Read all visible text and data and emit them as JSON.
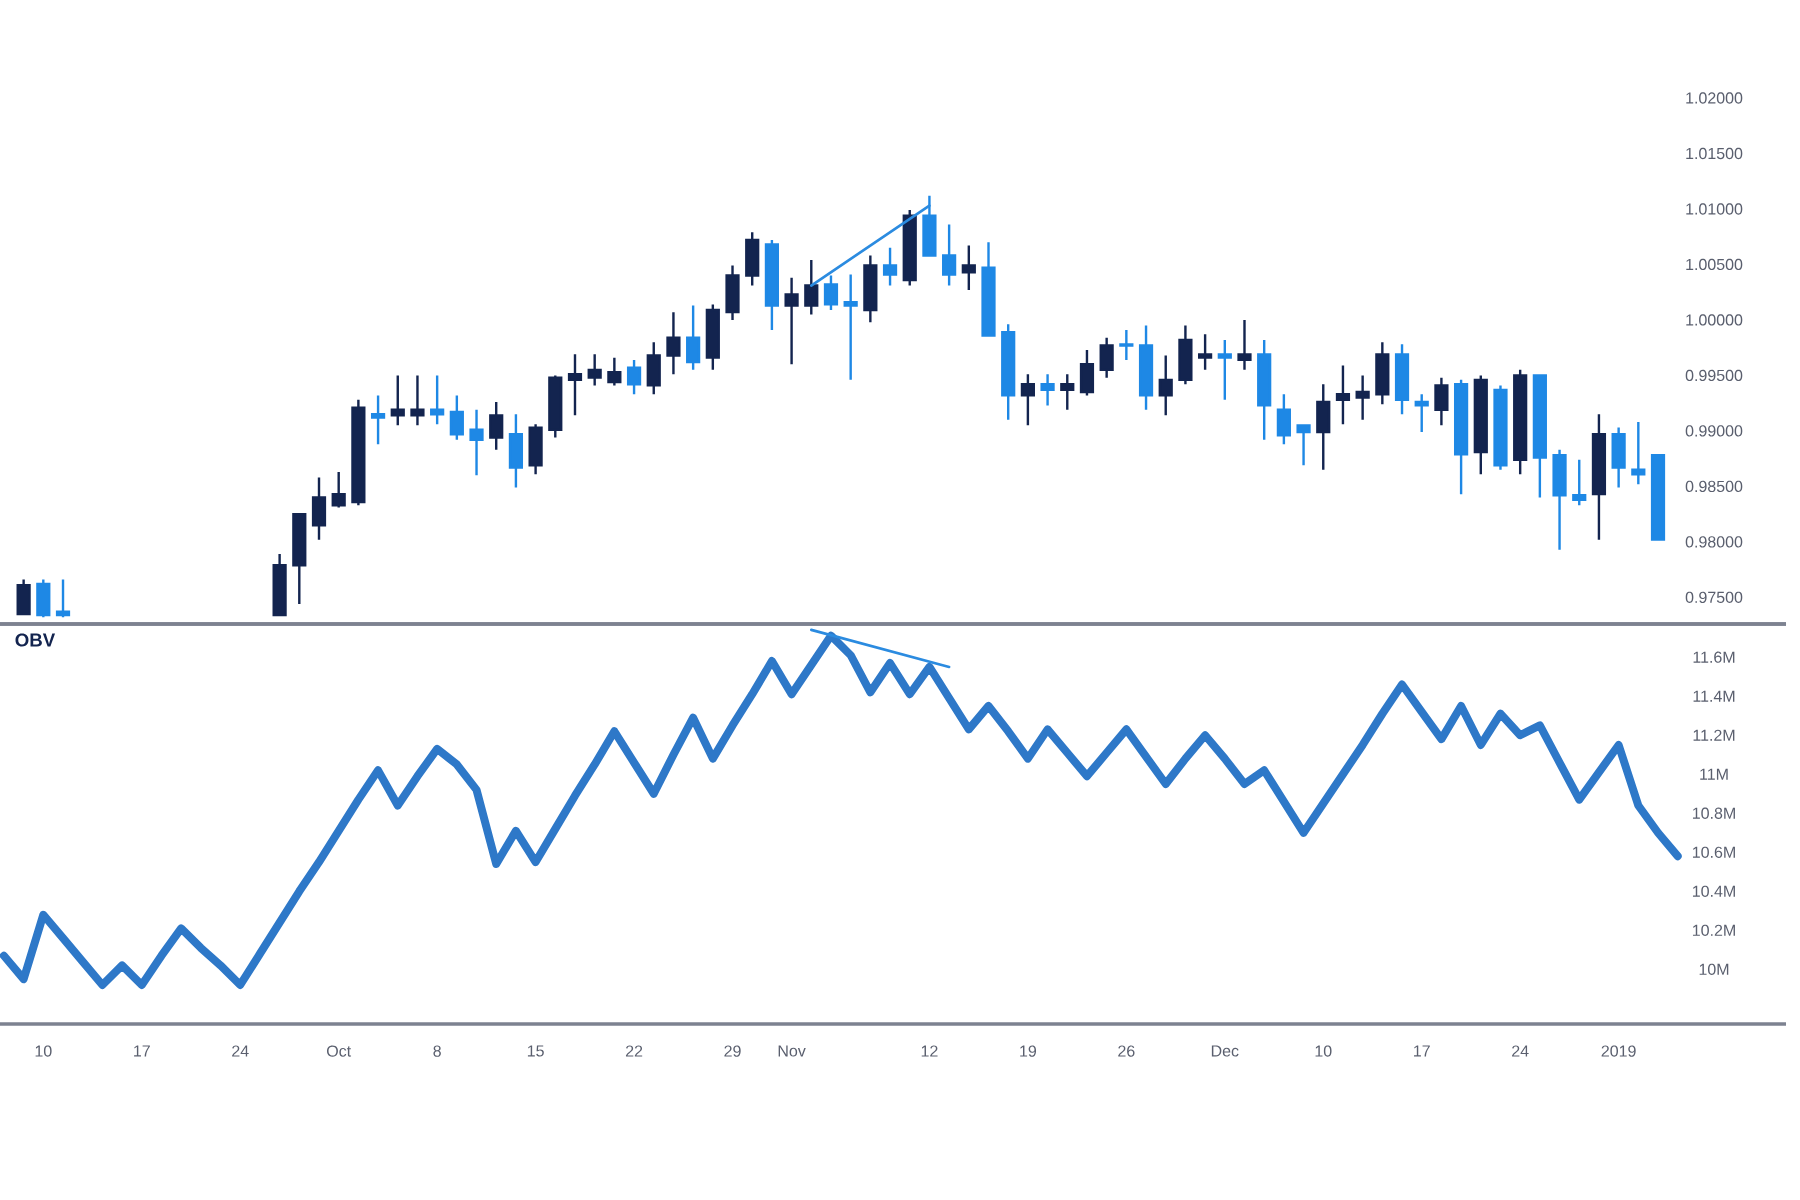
{
  "chart_data": [
    {
      "type": "candlestick",
      "series": [
        {
          "type": "candlestick",
          "ohlc": [
            null,
            [
              0.9735,
              0.9766,
              0.9734,
              0.9761
            ],
            [
              0.9762,
              0.9766,
              0.9732,
              0.9734
            ],
            [
              0.9737,
              0.9766,
              0.9732,
              0.9734
            ],
            null,
            null,
            null,
            null,
            null,
            null,
            null,
            null,
            null,
            null,
            [
              0.9734,
              0.9789,
              0.9734,
              0.9779
            ],
            [
              0.9779,
              0.9825,
              0.9744,
              0.9825
            ],
            [
              0.9815,
              0.9858,
              0.9802,
              0.984
            ],
            [
              0.9833,
              0.9863,
              0.9831,
              0.9843
            ],
            [
              0.9836,
              0.9928,
              0.9833,
              0.9921
            ],
            [
              0.9915,
              0.9932,
              0.9888,
              0.9912
            ],
            [
              0.9914,
              0.995,
              0.9905,
              0.9919
            ],
            [
              0.9914,
              0.995,
              0.9905,
              0.9919
            ],
            [
              0.9919,
              0.995,
              0.9906,
              0.9915
            ],
            [
              0.9917,
              0.9932,
              0.9892,
              0.9897
            ],
            [
              0.9901,
              0.9919,
              0.986,
              0.9892
            ],
            [
              0.9894,
              0.9926,
              0.9883,
              0.9914
            ],
            [
              0.9897,
              0.9915,
              0.9849,
              0.9867
            ],
            [
              0.9869,
              0.9906,
              0.9861,
              0.9903
            ],
            [
              0.9901,
              0.995,
              0.9894,
              0.9948
            ],
            [
              0.9946,
              0.9969,
              0.9914,
              0.9951
            ],
            [
              0.9948,
              0.9969,
              0.9941,
              0.9955
            ],
            [
              0.9944,
              0.9966,
              0.9941,
              0.9953
            ],
            [
              0.9957,
              0.9964,
              0.9933,
              0.9942
            ],
            [
              0.9941,
              0.998,
              0.9933,
              0.9968
            ],
            [
              0.9968,
              1.0007,
              0.9951,
              0.9984
            ],
            [
              0.9984,
              1.0013,
              0.9955,
              0.9962
            ],
            [
              0.9966,
              1.0014,
              0.9955,
              1.0009
            ],
            [
              1.0007,
              1.0049,
              1.0,
              1.004
            ],
            [
              1.004,
              1.0079,
              1.0031,
              1.0072
            ],
            [
              1.0068,
              1.0072,
              0.9991,
              1.0013
            ],
            [
              1.0013,
              1.0038,
              0.996,
              1.0023
            ],
            [
              1.0013,
              1.0054,
              1.0005,
              1.0031
            ],
            [
              1.0032,
              1.004,
              1.0009,
              1.0014
            ],
            [
              1.0016,
              1.0041,
              0.9946,
              1.0013
            ],
            [
              1.0009,
              1.0058,
              0.9998,
              1.0049
            ],
            [
              1.0049,
              1.0065,
              1.0031,
              1.0041
            ],
            [
              1.0036,
              1.0099,
              1.0031,
              1.0094
            ],
            [
              1.0094,
              1.0112,
              1.0058,
              1.0058
            ],
            [
              1.0058,
              1.0086,
              1.0031,
              1.0041
            ],
            [
              1.0043,
              1.0067,
              1.0027,
              1.0049
            ],
            [
              1.0047,
              1.007,
              0.9986,
              0.9986
            ],
            [
              0.9989,
              0.9996,
              0.991,
              0.9932
            ],
            [
              0.9932,
              0.9951,
              0.9905,
              0.9942
            ],
            [
              0.9942,
              0.9951,
              0.9923,
              0.9937
            ],
            [
              0.9937,
              0.9951,
              0.9919,
              0.9942
            ],
            [
              0.9935,
              0.9973,
              0.9932,
              0.996
            ],
            [
              0.9955,
              0.9984,
              0.9948,
              0.9977
            ],
            [
              0.9978,
              0.9991,
              0.9964,
              0.9977
            ],
            [
              0.9977,
              0.9995,
              0.9919,
              0.9932
            ],
            [
              0.9932,
              0.9968,
              0.9914,
              0.9946
            ],
            [
              0.9946,
              0.9995,
              0.9942,
              0.9982
            ],
            [
              0.9966,
              0.9987,
              0.9955,
              0.9969
            ],
            [
              0.9969,
              0.9982,
              0.9928,
              0.9966
            ],
            [
              0.9964,
              1.0,
              0.9955,
              0.9969
            ],
            [
              0.9969,
              0.9982,
              0.9892,
              0.9923
            ],
            [
              0.9919,
              0.9933,
              0.9888,
              0.9896
            ],
            [
              0.9905,
              0.9906,
              0.9869,
              0.9899
            ],
            [
              0.9899,
              0.9942,
              0.9865,
              0.9926
            ],
            [
              0.9928,
              0.9959,
              0.9906,
              0.9933
            ],
            [
              0.993,
              0.995,
              0.991,
              0.9935
            ],
            [
              0.9933,
              0.998,
              0.9924,
              0.9969
            ],
            [
              0.9969,
              0.9978,
              0.9915,
              0.9928
            ],
            [
              0.9926,
              0.9933,
              0.9899,
              0.9923
            ],
            [
              0.9919,
              0.9948,
              0.9905,
              0.9941
            ],
            [
              0.9942,
              0.9946,
              0.9843,
              0.9879
            ],
            [
              0.9881,
              0.995,
              0.9861,
              0.9946
            ],
            [
              0.9937,
              0.9941,
              0.9865,
              0.9869
            ],
            [
              0.9874,
              0.9955,
              0.9861,
              0.995
            ],
            [
              0.995,
              0.9951,
              0.984,
              0.9876
            ],
            [
              0.9878,
              0.9883,
              0.9793,
              0.9842
            ],
            [
              0.9842,
              0.9874,
              0.9833,
              0.9838
            ],
            [
              0.9843,
              0.9915,
              0.9802,
              0.9897
            ],
            [
              0.9897,
              0.9903,
              0.9849,
              0.9867
            ],
            [
              0.9865,
              0.9908,
              0.9852,
              0.9861
            ],
            [
              0.9878,
              0.9878,
              0.9802,
              0.9802
            ],
            null
          ],
          "colors": [
            null,
            "#13244f",
            "#1e88e5",
            "#1e88e5",
            null,
            null,
            null,
            null,
            null,
            null,
            null,
            null,
            null,
            null,
            "#13244f",
            "#13244f",
            "#13244f",
            "#13244f",
            "#13244f",
            "#1e88e5",
            "#13244f",
            "#13244f",
            "#1e88e5",
            "#1e88e5",
            "#1e88e5",
            "#13244f",
            "#1e88e5",
            "#13244f",
            "#13244f",
            "#13244f",
            "#13244f",
            "#13244f",
            "#1e88e5",
            "#13244f",
            "#13244f",
            "#1e88e5",
            "#13244f",
            "#13244f",
            "#13244f",
            "#1e88e5",
            "#13244f",
            "#13244f",
            "#1e88e5",
            "#1e88e5",
            "#13244f",
            "#1e88e5",
            "#13244f",
            "#1e88e5",
            "#1e88e5",
            "#13244f",
            "#1e88e5",
            "#1e88e5",
            "#13244f",
            "#1e88e5",
            "#13244f",
            "#13244f",
            "#13244f",
            "#1e88e5",
            "#1e88e5",
            "#13244f",
            "#13244f",
            "#13244f",
            "#1e88e5",
            "#13244f",
            "#1e88e5",
            "#1e88e5",
            "#1e88e5",
            "#13244f",
            "#13244f",
            "#13244f",
            "#13244f",
            "#1e88e5",
            "#1e88e5",
            "#13244f",
            "#1e88e5",
            "#13244f",
            "#1e88e5",
            "#13244f",
            "#1e88e5",
            "#1e88e5",
            "#1e88e5",
            "#13244f",
            "#1e88e5",
            "#1e88e5",
            "#1e88e5",
            null
          ]
        },
        {
          "type": "line",
          "color": "#2b8be0",
          "values": [
            null,
            null,
            null,
            null,
            null,
            null,
            null,
            null,
            null,
            null,
            null,
            null,
            null,
            null,
            null,
            null,
            null,
            null,
            null,
            null,
            null,
            null,
            null,
            null,
            null,
            null,
            null,
            null,
            null,
            null,
            null,
            null,
            null,
            null,
            null,
            null,
            null,
            null,
            null,
            null,
            null,
            1.0031,
            null,
            null,
            null,
            null,
            null,
            1.0103,
            null,
            null,
            null,
            null,
            null,
            null,
            null,
            null,
            null,
            null,
            null,
            null,
            null,
            null,
            null,
            null,
            null,
            null,
            null,
            null,
            null,
            null,
            null,
            null,
            null,
            null,
            null,
            null,
            null,
            null,
            null,
            null,
            null,
            null,
            null,
            null,
            null,
            null
          ]
        }
      ],
      "ylim": [
        0.9726,
        1.02
      ],
      "yticks": [
        {
          "value": 0.975,
          "label": "0.97500"
        },
        {
          "value": 0.98,
          "label": "0.98000"
        },
        {
          "value": 0.985,
          "label": "0.98500"
        },
        {
          "value": 0.99,
          "label": "0.99000"
        },
        {
          "value": 0.995,
          "label": "0.99500"
        },
        {
          "value": 1.0,
          "label": "1.00000"
        },
        {
          "value": 1.005,
          "label": "1.00500"
        },
        {
          "value": 1.01,
          "label": "1.01000"
        },
        {
          "value": 1.015,
          "label": "1.01500"
        },
        {
          "value": 1.02,
          "label": "1.02000"
        }
      ],
      "tick_labels": "y"
    },
    {
      "type": "line",
      "title": "OBV",
      "categories": [
        null,
        null,
        "10",
        null,
        null,
        null,
        null,
        "17",
        null,
        null,
        null,
        null,
        "24",
        null,
        null,
        null,
        null,
        "Oct",
        null,
        null,
        null,
        null,
        "8",
        null,
        null,
        null,
        null,
        "15",
        null,
        null,
        null,
        null,
        "22",
        null,
        null,
        null,
        null,
        "29",
        null,
        null,
        "Nov",
        null,
        null,
        null,
        null,
        null,
        null,
        "12",
        null,
        null,
        null,
        null,
        "19",
        null,
        null,
        null,
        null,
        "26",
        null,
        null,
        null,
        null,
        "Dec",
        null,
        null,
        null,
        null,
        "10",
        null,
        null,
        null,
        null,
        "17",
        null,
        null,
        null,
        null,
        "24",
        null,
        null,
        null,
        null,
        "2019",
        null,
        null,
        null
      ],
      "series": [
        {
          "color": "#2e78c8",
          "values": [
            10.07,
            9.95,
            10.28,
            10.16,
            10.04,
            9.92,
            10.02,
            9.92,
            10.07,
            10.21,
            10.11,
            10.02,
            9.92,
            10.08,
            10.24,
            10.4,
            10.55,
            10.71,
            10.87,
            11.02,
            10.84,
            10.99,
            11.13,
            11.05,
            10.92,
            10.54,
            10.71,
            10.55,
            10.72,
            10.89,
            11.05,
            11.22,
            11.06,
            10.9,
            11.1,
            11.29,
            11.08,
            11.25,
            11.41,
            11.58,
            11.41,
            11.56,
            11.71,
            11.61,
            11.42,
            11.57,
            11.41,
            11.55,
            11.39,
            11.23,
            11.35,
            11.22,
            11.08,
            11.23,
            11.11,
            10.99,
            11.11,
            11.23,
            11.09,
            10.95,
            11.08,
            11.2,
            11.08,
            10.95,
            11.02,
            10.86,
            10.7,
            10.85,
            11.0,
            11.15,
            11.31,
            11.46,
            11.32,
            11.18,
            11.35,
            11.15,
            11.31,
            11.2,
            11.25,
            11.06,
            10.87,
            11.01,
            11.15,
            10.84,
            10.7,
            10.58
          ]
        },
        {
          "color": "#2b8be0",
          "values": [
            null,
            null,
            null,
            null,
            null,
            null,
            null,
            null,
            null,
            null,
            null,
            null,
            null,
            null,
            null,
            null,
            null,
            null,
            null,
            null,
            null,
            null,
            null,
            null,
            null,
            null,
            null,
            null,
            null,
            null,
            null,
            null,
            null,
            null,
            null,
            null,
            null,
            null,
            null,
            null,
            null,
            11.74,
            null,
            null,
            null,
            null,
            null,
            null,
            11.55,
            null,
            null,
            null,
            null,
            null,
            null,
            null,
            null,
            null,
            null,
            null,
            null,
            null,
            null,
            null,
            null,
            null,
            null,
            null,
            null,
            null,
            null,
            null,
            null,
            null,
            null,
            null,
            null,
            null,
            null,
            null,
            null,
            null,
            null,
            null,
            null,
            null
          ]
        }
      ],
      "ylim": [
        9.72,
        11.77
      ],
      "yticks": [
        {
          "value": 10,
          "label": "10M"
        },
        {
          "value": 10.2,
          "label": "10.2M"
        },
        {
          "value": 10.4,
          "label": "10.4M"
        },
        {
          "value": 10.6,
          "label": "10.6M"
        },
        {
          "value": 10.8,
          "label": "10.8M"
        },
        {
          "value": 11,
          "label": "11M"
        },
        {
          "value": 11.2,
          "label": "11.2M"
        },
        {
          "value": 11.4,
          "label": "11.4M"
        },
        {
          "value": 11.6,
          "label": "11.6M"
        }
      ]
    }
  ]
}
